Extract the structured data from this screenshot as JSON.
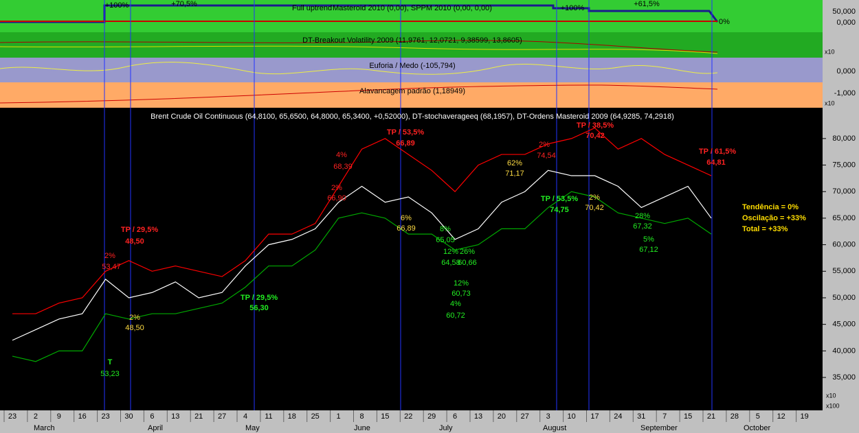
{
  "chart_data": {
    "type": "line",
    "title": "Brent Crude Oil Continuous (64,8100, 65,6500, 64,8000, 65,3400, +0,52000), DT-stochaverageeq (68,1957), DT-Ordens Masteroid 2009 (64,9285, 74,2918)",
    "panels": {
      "top": {
        "title": "Masteroid 2010 (0,00), SPPM 2010 (0,00, 0,00)",
        "subtitle": "Full uptrend",
        "labels": [
          "+100%",
          "+70,5%",
          "+100%",
          "+61,5%",
          "0%"
        ],
        "ticks": [
          "50,000",
          "0,000"
        ]
      },
      "volatility": {
        "title": "DT-Breakout Volatility 2009 (11,9761, 12,0721, 9,38599, 13,8605)",
        "ticks": [
          "x10"
        ]
      },
      "euforia": {
        "title": "Euforia / Medo (-105,794)",
        "ticks": [
          "0,000"
        ]
      },
      "alavancagem": {
        "title": "Alavancagem padrão (1,18949)",
        "ticks": [
          "-1,000",
          "x10"
        ]
      }
    },
    "categories": [
      "23",
      "2",
      "9",
      "16",
      "23",
      "30",
      "6",
      "13",
      "21",
      "27",
      "4",
      "11",
      "18",
      "25",
      "1",
      "8",
      "15",
      "22",
      "29",
      "6",
      "13",
      "20",
      "27",
      "3",
      "10",
      "17",
      "24",
      "31",
      "7",
      "15",
      "21",
      "28",
      "5",
      "12",
      "19"
    ],
    "months": [
      "March",
      "April",
      "May",
      "June",
      "July",
      "August",
      "September",
      "October"
    ],
    "ylim": [
      28.8,
      85.8
    ],
    "yticks": [
      {
        "value": 35,
        "label": "35,000"
      },
      {
        "value": 40,
        "label": "40,000"
      },
      {
        "value": 45,
        "label": "45,000"
      },
      {
        "value": 50,
        "label": "50,000"
      },
      {
        "value": 55,
        "label": "55,000"
      },
      {
        "value": 60,
        "label": "60,000"
      },
      {
        "value": 65,
        "label": "65,000"
      },
      {
        "value": 70,
        "label": "70,000"
      },
      {
        "value": 75,
        "label": "75,000"
      },
      {
        "value": 80,
        "label": "80,000"
      }
    ],
    "volume_labels": [
      "x10",
      "x100"
    ],
    "series": [
      {
        "name": "Close",
        "color": "#ffffff",
        "values": [
          42,
          44,
          46,
          47,
          53.5,
          50,
          51,
          53,
          50,
          51,
          56,
          60,
          61,
          63,
          68,
          71,
          68,
          69,
          66,
          61,
          63,
          68,
          70,
          74,
          73,
          73,
          71,
          67,
          69,
          71,
          65,
          null,
          null,
          null,
          null
        ]
      },
      {
        "name": "Upper",
        "color": "#ff0000",
        "values": [
          47,
          47,
          49,
          50,
          55,
          57,
          55,
          56,
          55,
          54,
          57,
          62,
          62,
          64,
          71,
          78,
          80,
          77,
          74,
          70,
          75,
          77,
          77,
          79,
          80,
          82,
          78,
          80,
          77,
          75,
          73,
          null,
          null,
          null,
          null
        ]
      },
      {
        "name": "Lower",
        "color": "#00aa00",
        "values": [
          39,
          38,
          40,
          40,
          47,
          46,
          47,
          47,
          48,
          49,
          52,
          56,
          56,
          59,
          65,
          66,
          65,
          62,
          62,
          59,
          60,
          63,
          63,
          67,
          70,
          69,
          66,
          65,
          64,
          65,
          62,
          null,
          null,
          null,
          null
        ]
      }
    ],
    "annotations": {
      "red": [
        "TP / 29,5%",
        "48,50",
        "2%",
        "53,47",
        "4%",
        "68,39",
        "2%",
        "66,90",
        "TP / 53,5%",
        "66,89",
        "2%",
        "74,54",
        "TP / 38,5%",
        "70,42",
        "TP / 61,5%",
        "64,81"
      ],
      "yellow": [
        "2%",
        "48,50",
        "6%",
        "66,89",
        "62%",
        "71,17",
        "2%",
        "70,42"
      ],
      "green": [
        "T",
        "53,23",
        "TP / 29,5%",
        "56,30",
        "TP / 53,5%",
        "74,75",
        "8%",
        "65,05",
        "12%",
        "64,58",
        "26%",
        "60,66",
        "12%",
        "60,73",
        "4%",
        "60,72",
        "28%",
        "67,32",
        "5%",
        "67,12"
      ],
      "summary": [
        "Tendência = 0%",
        "Oscilação = +33%",
        "Total = +33%"
      ]
    }
  }
}
